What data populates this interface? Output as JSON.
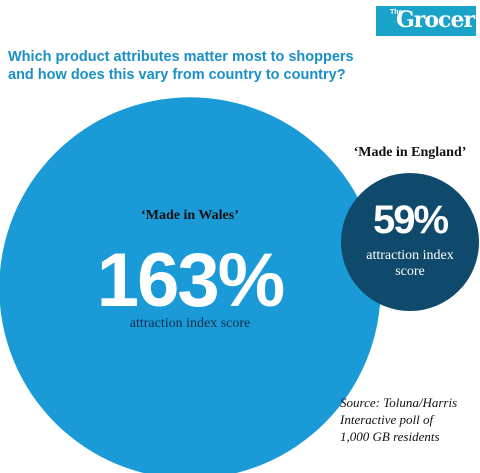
{
  "logo": {
    "small": "The",
    "name": "Grocer"
  },
  "chart_data": {
    "type": "bubble",
    "title": "Which product attributes matter most to shoppers and how does this vary from country to country?",
    "categories": [
      "‘Made in Wales’",
      "‘Made in England’"
    ],
    "values": [
      163,
      59
    ],
    "value_labels": [
      "163%",
      "59%"
    ],
    "sublabels": [
      "attraction index score",
      "attraction index score"
    ],
    "colors": [
      "#1a9ad6",
      "#0f4a6c"
    ],
    "source": [
      "Source: Toluna/Harris",
      "Interactive poll of",
      "1,000 GB residents"
    ]
  }
}
